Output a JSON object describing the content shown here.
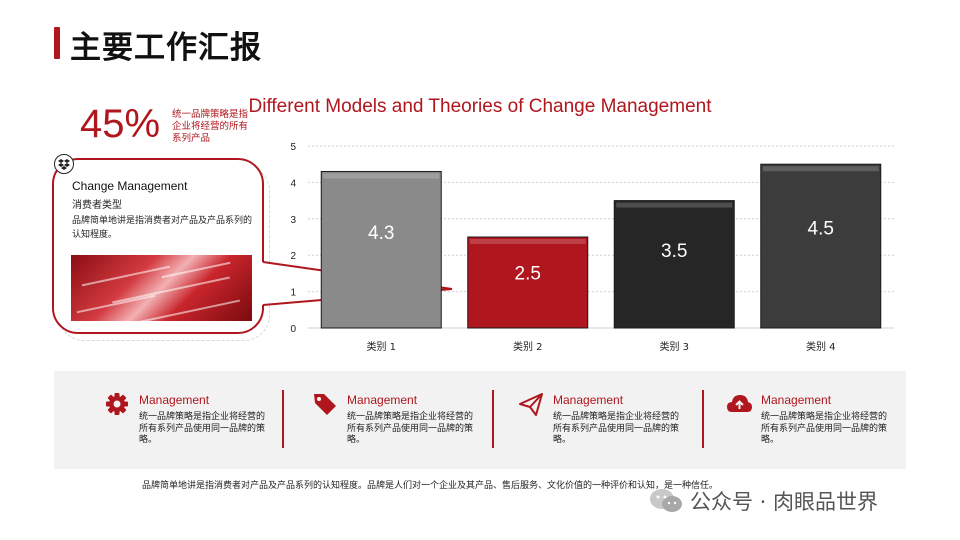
{
  "page": {
    "title": "主要工作汇报"
  },
  "stat": {
    "value": "45%",
    "description": "统一品牌策略是指企业将经营的所有系列产品"
  },
  "callout": {
    "title": "Change Management",
    "subtitle": "消费者类型",
    "description": "品牌简单地讲是指消费者对产品及产品系列的认知程度。"
  },
  "colors": {
    "accent": "#b0161e",
    "gray_bar": "#8a8a8a",
    "dark_bar": "#262626",
    "mid_bar": "#3c3c3c"
  },
  "chart_data": {
    "type": "bar",
    "title": "Different Models and Theories of Change Management",
    "categories": [
      "类别 1",
      "类别 2",
      "类别 3",
      "类别 4"
    ],
    "values": [
      4.3,
      2.5,
      3.5,
      4.5
    ],
    "data_labels": [
      "4.3",
      "2.5",
      "3.5",
      "4.5"
    ],
    "bar_colors": [
      "#8a8a8a",
      "#b0161e",
      "#262626",
      "#3c3c3c"
    ],
    "ylim": [
      0,
      5
    ],
    "yticks": [
      "0",
      "1",
      "2",
      "3",
      "4",
      "5"
    ],
    "grid": true,
    "xlabel": "",
    "ylabel": ""
  },
  "features": [
    {
      "icon": "gear-icon",
      "title": "Management",
      "text": "统一品牌策略是指企业将经营的所有系列产品使用同一品牌的策略。"
    },
    {
      "icon": "tag-icon",
      "title": "Management",
      "text": "统一品牌策略是指企业将经营的所有系列产品使用同一品牌的策略。"
    },
    {
      "icon": "paper-plane-icon",
      "title": "Management",
      "text": "统一品牌策略是指企业将经营的所有系列产品使用同一品牌的策略。"
    },
    {
      "icon": "cloud-upload-icon",
      "title": "Management",
      "text": "统一品牌策略是指企业将经营的所有系列产品使用同一品牌的策略。"
    }
  ],
  "footer": {
    "text": "品牌简单地讲是指消费者对产品及产品系列的认知程度。品牌是人们对一个企业及其产品、售后服务、文化价值的一种评价和认知，是一种信任。"
  },
  "watermark": {
    "text": "公众号 · 肉眼品世界"
  }
}
